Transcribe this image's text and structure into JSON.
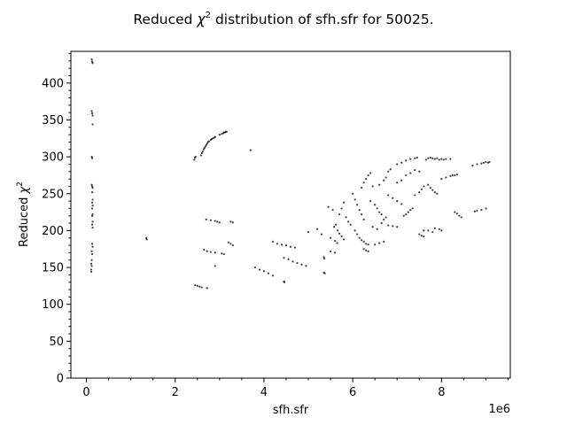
{
  "chart_data": {
    "type": "scatter",
    "title": "Reduced χ² distribution of sfh.sfr for 50025.",
    "title_parts": {
      "prefix": "Reduced ",
      "chi": "χ",
      "sup": "2",
      "suffix": " distribution of sfh.sfr for 50025."
    },
    "xlabel": "sfh.sfr",
    "ylabel": "Reduced χ²",
    "ylabel_parts": {
      "prefix": "Reduced ",
      "chi": "χ",
      "sup": "2"
    },
    "x_offset_label": "1e6",
    "x_scale": 1000000,
    "xlim": [
      -0.35,
      9.55
    ],
    "ylim": [
      0,
      443
    ],
    "x_ticks": [
      0,
      2,
      4,
      6,
      8
    ],
    "y_ticks": [
      0,
      50,
      100,
      150,
      200,
      250,
      300,
      350,
      400,
      450
    ],
    "grid": false,
    "legend": "none",
    "marker_color": "#000000",
    "points": [
      [
        0.12,
        432
      ],
      [
        0.13,
        429
      ],
      [
        0.14,
        427
      ],
      [
        0.12,
        362
      ],
      [
        0.13,
        359
      ],
      [
        0.14,
        356
      ],
      [
        0.14,
        344
      ],
      [
        0.12,
        300
      ],
      [
        0.13,
        298
      ],
      [
        0.12,
        262
      ],
      [
        0.13,
        260
      ],
      [
        0.14,
        258
      ],
      [
        0.13,
        252
      ],
      [
        0.14,
        242
      ],
      [
        0.13,
        238
      ],
      [
        0.14,
        234
      ],
      [
        0.13,
        230
      ],
      [
        0.14,
        222
      ],
      [
        0.13,
        220
      ],
      [
        0.14,
        212
      ],
      [
        0.13,
        208
      ],
      [
        0.14,
        204
      ],
      [
        0.13,
        182
      ],
      [
        0.14,
        178
      ],
      [
        0.12,
        172
      ],
      [
        0.13,
        168
      ],
      [
        0.12,
        160
      ],
      [
        0.11,
        155
      ],
      [
        0.12,
        152
      ],
      [
        0.11,
        147
      ],
      [
        0.11,
        144
      ],
      [
        1.35,
        190
      ],
      [
        1.36,
        188
      ],
      [
        2.43,
        296
      ],
      [
        2.44,
        299
      ],
      [
        2.46,
        300
      ],
      [
        2.58,
        302
      ],
      [
        2.6,
        305
      ],
      [
        2.62,
        307
      ],
      [
        2.64,
        310
      ],
      [
        2.66,
        312
      ],
      [
        2.68,
        314
      ],
      [
        2.7,
        316
      ],
      [
        2.72,
        318
      ],
      [
        2.74,
        320
      ],
      [
        2.76,
        321
      ],
      [
        2.8,
        323
      ],
      [
        2.82,
        324
      ],
      [
        2.85,
        325
      ],
      [
        2.88,
        326
      ],
      [
        2.9,
        327
      ],
      [
        3.0,
        330
      ],
      [
        3.05,
        331
      ],
      [
        3.08,
        332
      ],
      [
        3.1,
        333
      ],
      [
        3.12,
        333
      ],
      [
        3.14,
        334
      ],
      [
        3.16,
        334
      ],
      [
        3.7,
        309
      ],
      [
        2.7,
        215
      ],
      [
        2.8,
        214
      ],
      [
        2.9,
        213
      ],
      [
        2.95,
        212
      ],
      [
        3.0,
        211
      ],
      [
        3.25,
        212
      ],
      [
        3.3,
        211
      ],
      [
        3.2,
        184
      ],
      [
        3.25,
        182
      ],
      [
        3.3,
        180
      ],
      [
        2.65,
        174
      ],
      [
        2.72,
        172
      ],
      [
        2.8,
        171
      ],
      [
        2.9,
        170
      ],
      [
        3.05,
        169
      ],
      [
        3.1,
        168
      ],
      [
        2.9,
        152
      ],
      [
        2.45,
        126
      ],
      [
        2.5,
        125
      ],
      [
        2.55,
        124
      ],
      [
        2.6,
        123
      ],
      [
        2.72,
        122
      ],
      [
        4.2,
        185
      ],
      [
        4.3,
        182
      ],
      [
        4.4,
        181
      ],
      [
        4.5,
        180
      ],
      [
        4.6,
        178
      ],
      [
        4.7,
        177
      ],
      [
        3.8,
        150
      ],
      [
        3.9,
        147
      ],
      [
        4.0,
        145
      ],
      [
        4.1,
        142
      ],
      [
        4.2,
        139
      ],
      [
        4.45,
        163
      ],
      [
        4.55,
        161
      ],
      [
        4.65,
        158
      ],
      [
        4.75,
        156
      ],
      [
        4.85,
        154
      ],
      [
        4.95,
        152
      ],
      [
        4.45,
        131
      ],
      [
        4.46,
        130
      ],
      [
        5.0,
        198
      ],
      [
        5.2,
        202
      ],
      [
        5.3,
        195
      ],
      [
        5.35,
        164
      ],
      [
        5.36,
        162
      ],
      [
        5.35,
        143
      ],
      [
        5.37,
        142
      ],
      [
        5.45,
        232
      ],
      [
        5.55,
        228
      ],
      [
        5.5,
        190
      ],
      [
        5.6,
        186
      ],
      [
        5.65,
        183
      ],
      [
        5.5,
        172
      ],
      [
        5.6,
        170
      ],
      [
        5.58,
        205
      ],
      [
        5.62,
        208
      ],
      [
        5.66,
        200
      ],
      [
        5.7,
        196
      ],
      [
        5.75,
        192
      ],
      [
        5.8,
        188
      ],
      [
        5.7,
        222
      ],
      [
        5.75,
        230
      ],
      [
        5.8,
        238
      ],
      [
        5.85,
        218
      ],
      [
        5.9,
        212
      ],
      [
        5.95,
        208
      ],
      [
        6.0,
        250
      ],
      [
        6.05,
        242
      ],
      [
        6.1,
        235
      ],
      [
        6.15,
        228
      ],
      [
        6.2,
        222
      ],
      [
        6.25,
        215
      ],
      [
        6.05,
        200
      ],
      [
        6.1,
        195
      ],
      [
        6.15,
        190
      ],
      [
        6.2,
        187
      ],
      [
        6.25,
        185
      ],
      [
        6.25,
        175
      ],
      [
        6.3,
        173
      ],
      [
        6.35,
        172
      ],
      [
        6.3,
        182
      ],
      [
        6.35,
        181
      ],
      [
        6.2,
        258
      ],
      [
        6.25,
        265
      ],
      [
        6.3,
        270
      ],
      [
        6.35,
        275
      ],
      [
        6.4,
        278
      ],
      [
        6.45,
        260
      ],
      [
        6.4,
        240
      ],
      [
        6.5,
        235
      ],
      [
        6.55,
        230
      ],
      [
        6.6,
        225
      ],
      [
        6.65,
        222
      ],
      [
        6.45,
        205
      ],
      [
        6.55,
        202
      ],
      [
        6.65,
        210
      ],
      [
        6.7,
        215
      ],
      [
        6.75,
        218
      ],
      [
        6.5,
        181
      ],
      [
        6.6,
        183
      ],
      [
        6.7,
        185
      ],
      [
        6.6,
        262
      ],
      [
        6.7,
        268
      ],
      [
        6.75,
        272
      ],
      [
        6.8,
        280
      ],
      [
        6.85,
        283
      ],
      [
        6.8,
        248
      ],
      [
        6.9,
        244
      ],
      [
        7.0,
        240
      ],
      [
        7.1,
        236
      ],
      [
        6.8,
        207
      ],
      [
        6.9,
        206
      ],
      [
        7.0,
        205
      ],
      [
        7.0,
        290
      ],
      [
        7.1,
        292
      ],
      [
        7.2,
        295
      ],
      [
        7.3,
        297
      ],
      [
        7.4,
        298
      ],
      [
        7.45,
        299
      ],
      [
        7.0,
        265
      ],
      [
        7.1,
        268
      ],
      [
        7.2,
        275
      ],
      [
        7.3,
        278
      ],
      [
        7.4,
        282
      ],
      [
        7.5,
        280
      ],
      [
        7.15,
        220
      ],
      [
        7.2,
        222
      ],
      [
        7.25,
        225
      ],
      [
        7.3,
        228
      ],
      [
        7.35,
        230
      ],
      [
        7.4,
        248
      ],
      [
        7.5,
        252
      ],
      [
        7.55,
        256
      ],
      [
        7.6,
        260
      ],
      [
        7.5,
        195
      ],
      [
        7.55,
        193
      ],
      [
        7.6,
        192
      ],
      [
        7.65,
        296
      ],
      [
        7.7,
        298
      ],
      [
        7.75,
        299
      ],
      [
        7.8,
        298
      ],
      [
        7.85,
        297
      ],
      [
        7.9,
        298
      ],
      [
        7.95,
        296
      ],
      [
        8.0,
        297
      ],
      [
        8.05,
        296
      ],
      [
        8.1,
        297
      ],
      [
        8.2,
        297
      ],
      [
        7.7,
        262
      ],
      [
        7.75,
        258
      ],
      [
        7.8,
        255
      ],
      [
        7.85,
        252
      ],
      [
        7.9,
        250
      ],
      [
        7.6,
        200
      ],
      [
        7.7,
        200
      ],
      [
        7.8,
        198
      ],
      [
        7.85,
        203
      ],
      [
        7.95,
        202
      ],
      [
        8.0,
        200
      ],
      [
        8.0,
        270
      ],
      [
        8.1,
        272
      ],
      [
        8.2,
        274
      ],
      [
        8.25,
        275
      ],
      [
        8.3,
        275
      ],
      [
        8.35,
        276
      ],
      [
        8.3,
        225
      ],
      [
        8.35,
        223
      ],
      [
        8.4,
        220
      ],
      [
        8.45,
        218
      ],
      [
        8.7,
        288
      ],
      [
        8.8,
        290
      ],
      [
        8.9,
        291
      ],
      [
        8.95,
        292
      ],
      [
        9.0,
        293
      ],
      [
        9.05,
        292
      ],
      [
        9.08,
        293
      ],
      [
        8.75,
        226
      ],
      [
        8.8,
        227
      ],
      [
        8.9,
        228
      ],
      [
        9.0,
        230
      ]
    ]
  }
}
